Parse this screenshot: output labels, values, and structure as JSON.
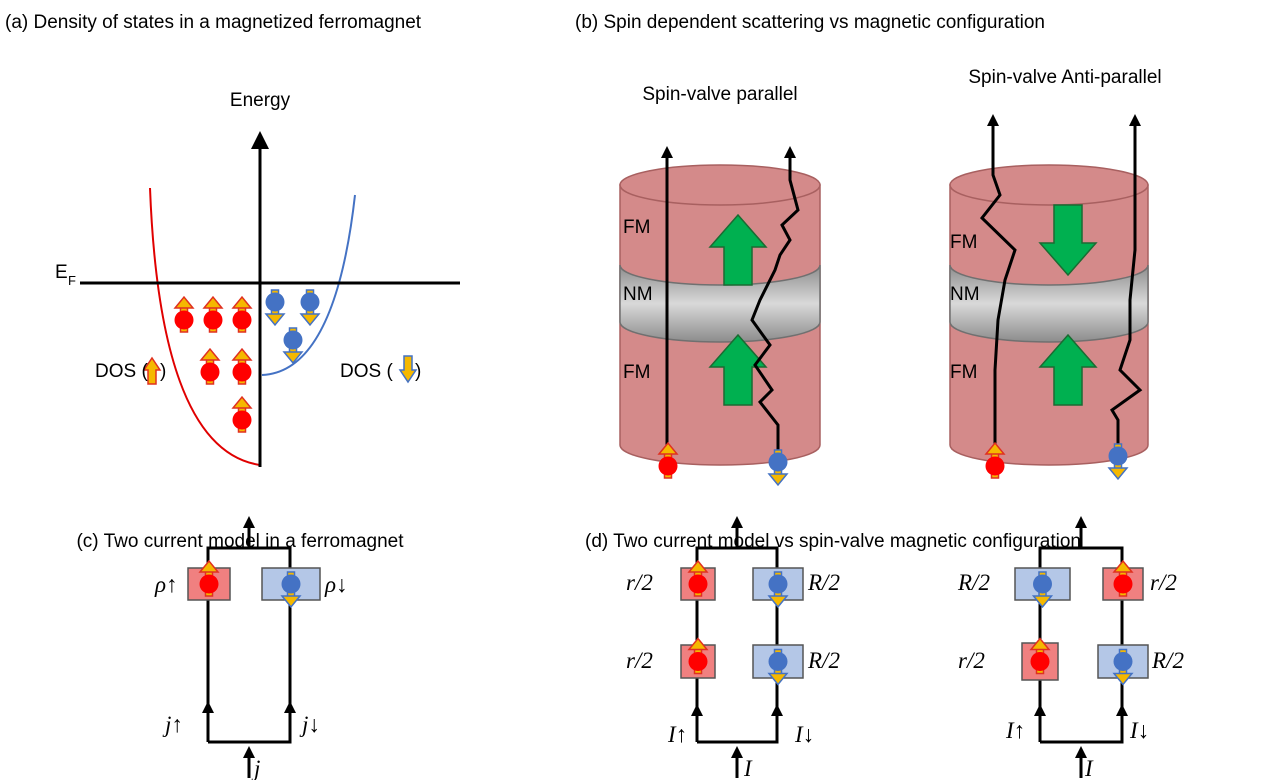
{
  "panel_a": {
    "title": "(a) Density of states in a magnetized ferromagnet",
    "axis_label": "Energy",
    "fermi_level": {
      "main": "E",
      "sub": "F"
    },
    "dos_up": {
      "open": "DOS (",
      "close": ")"
    },
    "dos_down": {
      "open": "DOS (",
      "close": ")"
    }
  },
  "panel_b": {
    "title": "(b) Spin dependent scattering vs magnetic configuration",
    "parallel": {
      "title": "Spin-valve parallel",
      "layers": [
        "FM",
        "NM",
        "FM"
      ]
    },
    "antiparallel": {
      "title": "Spin-valve Anti-parallel",
      "layers": [
        "FM",
        "NM",
        "FM"
      ]
    }
  },
  "panel_c": {
    "title": "(c) Two current model in a ferromagnet",
    "resistances": [
      "ρ↑",
      "ρ↓"
    ],
    "currents": [
      "j↑",
      "j↓"
    ],
    "total_current": "j"
  },
  "panel_d": {
    "title": "(d) Two current model vs spin-valve magnetic configuration",
    "parallel": {
      "resistances": [
        "r/2",
        "R/2",
        "r/2",
        "R/2"
      ],
      "currents": [
        "I↑",
        "I↓"
      ],
      "total_current": "I"
    },
    "antiparallel": {
      "resistances": [
        "R/2",
        "r/2",
        "r/2",
        "R/2"
      ],
      "currents": [
        "I↑",
        "I↓"
      ],
      "total_current": "I"
    }
  }
}
